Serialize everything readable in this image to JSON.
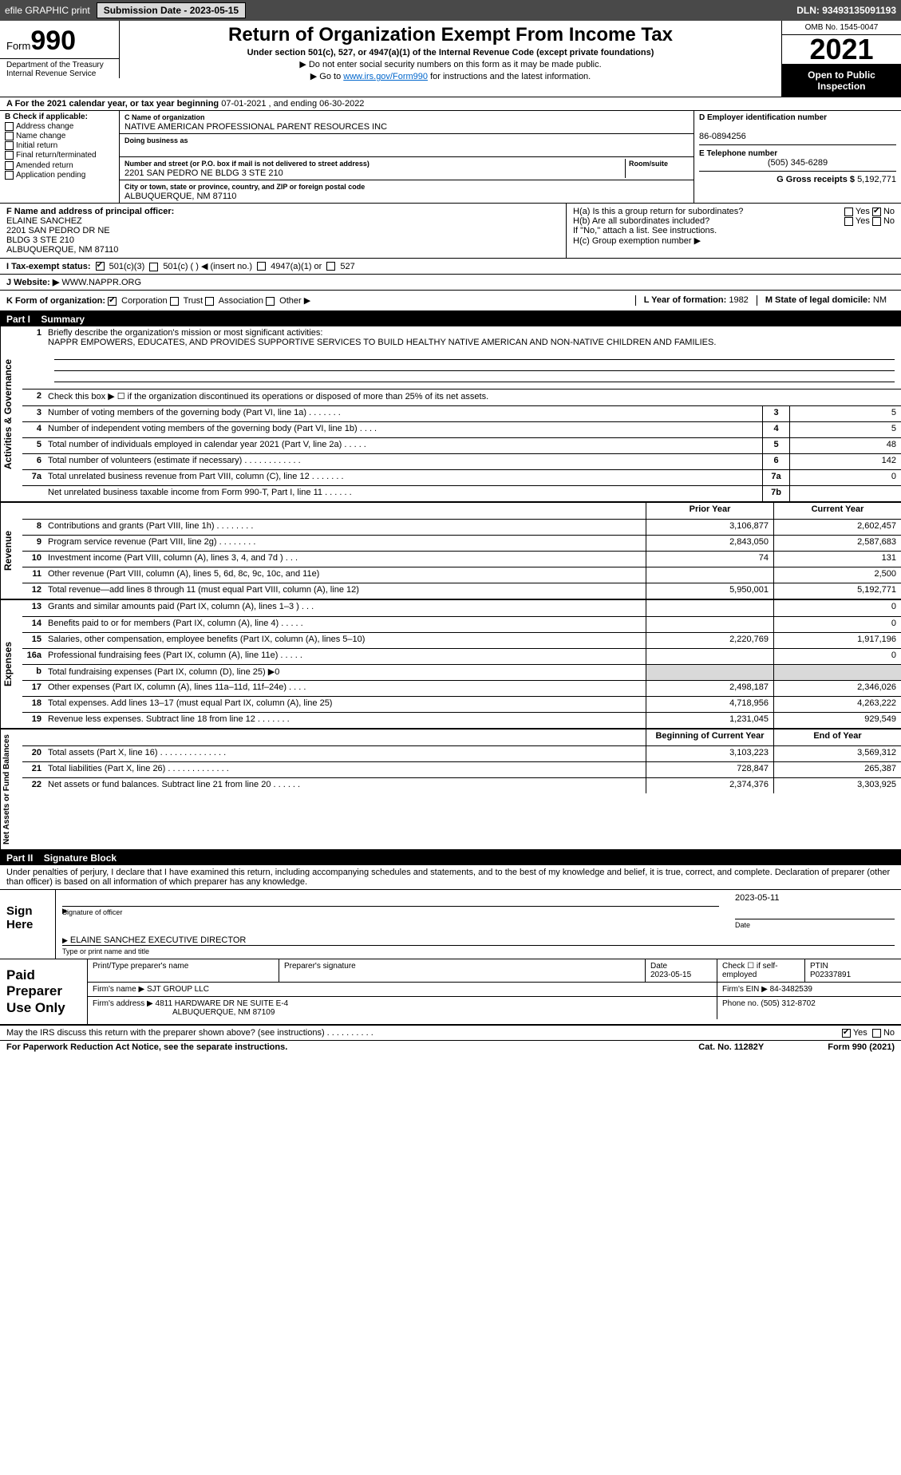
{
  "topbar": {
    "efile": "efile GRAPHIC print",
    "submission": "Submission Date - 2023-05-15",
    "dln": "DLN: 93493135091193"
  },
  "header": {
    "form_word": "Form",
    "form_num": "990",
    "dept": "Department of the Treasury Internal Revenue Service",
    "title": "Return of Organization Exempt From Income Tax",
    "sub1": "Under section 501(c), 527, or 4947(a)(1) of the Internal Revenue Code (except private foundations)",
    "sub2": "▶ Do not enter social security numbers on this form as it may be made public.",
    "sub3_pre": "▶ Go to ",
    "sub3_link": "www.irs.gov/Form990",
    "sub3_post": " for instructions and the latest information.",
    "omb": "OMB No. 1545-0047",
    "year": "2021",
    "open": "Open to Public Inspection"
  },
  "row_a": {
    "label": "A For the 2021 calendar year, or tax year beginning ",
    "begin": "07-01-2021",
    "mid": " , and ending ",
    "end": "06-30-2022"
  },
  "col_b": {
    "title": "B Check if applicable:",
    "items": [
      "Address change",
      "Name change",
      "Initial return",
      "Final return/terminated",
      "Amended return",
      "Application pending"
    ]
  },
  "col_c": {
    "c_label": "C Name of organization",
    "org": "NATIVE AMERICAN PROFESSIONAL PARENT RESOURCES INC",
    "dba_label": "Doing business as",
    "dba": "",
    "street_label": "Number and street (or P.O. box if mail is not delivered to street address)",
    "room_label": "Room/suite",
    "street": "2201 SAN PEDRO NE BLDG 3 STE 210",
    "city_label": "City or town, state or province, country, and ZIP or foreign postal code",
    "city": "ALBUQUERQUE, NM  87110"
  },
  "col_d": {
    "d_label": "D Employer identification number",
    "ein": "86-0894256",
    "e_label": "E Telephone number",
    "phone": "(505) 345-6289",
    "g_label": "G Gross receipts $",
    "gross": "5,192,771"
  },
  "row_f": {
    "f_label": "F  Name and address of principal officer:",
    "name": "ELAINE SANCHEZ",
    "addr1": "2201 SAN PEDRO DR NE",
    "addr2": "BLDG 3 STE 210",
    "addr3": "ALBUQUERQUE, NM  87110"
  },
  "row_h": {
    "ha": "H(a)  Is this a group return for subordinates?",
    "hb": "H(b)  Are all subordinates included?",
    "hb_note": "If \"No,\" attach a list. See instructions.",
    "hc": "H(c)  Group exemption number ▶"
  },
  "row_i": {
    "label": "I  Tax-exempt status:",
    "opt1": "501(c)(3)",
    "opt2": "501(c) (   ) ◀ (insert no.)",
    "opt3": "4947(a)(1) or",
    "opt4": "527"
  },
  "row_j": {
    "label": "J  Website: ▶",
    "site": "WWW.NAPPR.ORG"
  },
  "row_k": {
    "label": "K Form of organization:",
    "opts": [
      "Corporation",
      "Trust",
      "Association",
      "Other ▶"
    ],
    "l": "L Year of formation: ",
    "l_val": "1982",
    "m": "M State of legal domicile: ",
    "m_val": "NM"
  },
  "part1": {
    "header": "Part I",
    "title": "Summary"
  },
  "summary": {
    "line1_label": "Briefly describe the organization's mission or most significant activities:",
    "line1_text": "NAPPR EMPOWERS, EDUCATES, AND PROVIDES SUPPORTIVE SERVICES TO BUILD HEALTHY NATIVE AMERICAN AND NON-NATIVE CHILDREN AND FAMILIES.",
    "line2": "Check this box ▶ ☐  if the organization discontinued its operations or disposed of more than 25% of its net assets.",
    "rows_gov": [
      {
        "n": "3",
        "d": "Number of voting members of the governing body (Part VI, line 1a)   .    .    .    .    .    .    .",
        "b": "3",
        "v": "5"
      },
      {
        "n": "4",
        "d": "Number of independent voting members of the governing body (Part VI, line 1b)   .   .   .   .",
        "b": "4",
        "v": "5"
      },
      {
        "n": "5",
        "d": "Total number of individuals employed in calendar year 2021 (Part V, line 2a)   .   .   .   .   .",
        "b": "5",
        "v": "48"
      },
      {
        "n": "6",
        "d": "Total number of volunteers (estimate if necessary)   .   .   .   .   .   .   .   .   .   .   .   .",
        "b": "6",
        "v": "142"
      },
      {
        "n": "7a",
        "d": "Total unrelated business revenue from Part VIII, column (C), line 12   .   .   .   .   .   .   .",
        "b": "7a",
        "v": "0"
      },
      {
        "n": "",
        "d": "Net unrelated business taxable income from Form 990-T, Part I, line 11   .   .   .   .   .   .",
        "b": "7b",
        "v": ""
      }
    ],
    "col_headers": {
      "prior": "Prior Year",
      "current": "Current Year"
    },
    "rows_rev": [
      {
        "n": "8",
        "d": "Contributions and grants (Part VIII, line 1h)   .   .   .   .   .   .   .   .",
        "p": "3,106,877",
        "c": "2,602,457"
      },
      {
        "n": "9",
        "d": "Program service revenue (Part VIII, line 2g)   .   .   .   .   .   .   .   .",
        "p": "2,843,050",
        "c": "2,587,683"
      },
      {
        "n": "10",
        "d": "Investment income (Part VIII, column (A), lines 3, 4, and 7d )   .   .   .",
        "p": "74",
        "c": "131"
      },
      {
        "n": "11",
        "d": "Other revenue (Part VIII, column (A), lines 5, 6d, 8c, 9c, 10c, and 11e)",
        "p": "",
        "c": "2,500"
      },
      {
        "n": "12",
        "d": "Total revenue—add lines 8 through 11 (must equal Part VIII, column (A), line 12)",
        "p": "5,950,001",
        "c": "5,192,771"
      }
    ],
    "rows_exp": [
      {
        "n": "13",
        "d": "Grants and similar amounts paid (Part IX, column (A), lines 1–3 )   .   .   .",
        "p": "",
        "c": "0"
      },
      {
        "n": "14",
        "d": "Benefits paid to or for members (Part IX, column (A), line 4)   .   .   .   .   .",
        "p": "",
        "c": "0"
      },
      {
        "n": "15",
        "d": "Salaries, other compensation, employee benefits (Part IX, column (A), lines 5–10)",
        "p": "2,220,769",
        "c": "1,917,196"
      },
      {
        "n": "16a",
        "d": "Professional fundraising fees (Part IX, column (A), line 11e)   .   .   .   .   .",
        "p": "",
        "c": "0"
      },
      {
        "n": "b",
        "d": "Total fundraising expenses (Part IX, column (D), line 25) ▶0",
        "p": "",
        "c": "",
        "gray": true
      },
      {
        "n": "17",
        "d": "Other expenses (Part IX, column (A), lines 11a–11d, 11f–24e)   .   .   .   .",
        "p": "2,498,187",
        "c": "2,346,026"
      },
      {
        "n": "18",
        "d": "Total expenses. Add lines 13–17 (must equal Part IX, column (A), line 25)",
        "p": "4,718,956",
        "c": "4,263,222"
      },
      {
        "n": "19",
        "d": "Revenue less expenses. Subtract line 18 from line 12   .   .   .   .   .   .   .",
        "p": "1,231,045",
        "c": "929,549"
      }
    ],
    "col_headers2": {
      "begin": "Beginning of Current Year",
      "end": "End of Year"
    },
    "rows_net": [
      {
        "n": "20",
        "d": "Total assets (Part X, line 16)   .   .   .   .   .   .   .   .   .   .   .   .   .   .",
        "p": "3,103,223",
        "c": "3,569,312"
      },
      {
        "n": "21",
        "d": "Total liabilities (Part X, line 26)   .   .   .   .   .   .   .   .   .   .   .   .   .",
        "p": "728,847",
        "c": "265,387"
      },
      {
        "n": "22",
        "d": "Net assets or fund balances. Subtract line 21 from line 20   .   .   .   .   .   .",
        "p": "2,374,376",
        "c": "3,303,925"
      }
    ],
    "vtabs": {
      "gov": "Activities & Governance",
      "rev": "Revenue",
      "exp": "Expenses",
      "net": "Net Assets or Fund Balances"
    }
  },
  "part2": {
    "header": "Part II",
    "title": "Signature Block",
    "penalties": "Under penalties of perjury, I declare that I have examined this return, including accompanying schedules and statements, and to the best of my knowledge and belief, it is true, correct, and complete. Declaration of preparer (other than officer) is based on all information of which preparer has any knowledge."
  },
  "sign": {
    "label": "Sign Here",
    "sig_officer": "Signature of officer",
    "date": "Date",
    "date_val": "2023-05-11",
    "name": "ELAINE SANCHEZ  EXECUTIVE DIRECTOR",
    "name_caption": "Type or print name and title"
  },
  "paid": {
    "label": "Paid Preparer Use Only",
    "h1": "Print/Type preparer's name",
    "h2": "Preparer's signature",
    "h3": "Date",
    "h3v": "2023-05-15",
    "h4": "Check ☐ if self-employed",
    "h5": "PTIN",
    "h5v": "P02337891",
    "firm_name_l": "Firm's name    ▶",
    "firm_name": "SJT GROUP LLC",
    "firm_ein_l": "Firm's EIN ▶",
    "firm_ein": "84-3482539",
    "firm_addr_l": "Firm's address ▶",
    "firm_addr": "4811 HARDWARE DR NE SUITE E-4",
    "firm_addr2": "ALBUQUERQUE, NM  87109",
    "phone_l": "Phone no.",
    "phone": "(505) 312-8702"
  },
  "footer": {
    "discuss": "May the IRS discuss this return with the preparer shown above? (see instructions)   .   .   .   .   .   .   .   .   .   .",
    "yes": "Yes",
    "no": "No",
    "pra": "For Paperwork Reduction Act Notice, see the separate instructions.",
    "cat": "Cat. No. 11282Y",
    "formref": "Form 990 (2021)"
  }
}
